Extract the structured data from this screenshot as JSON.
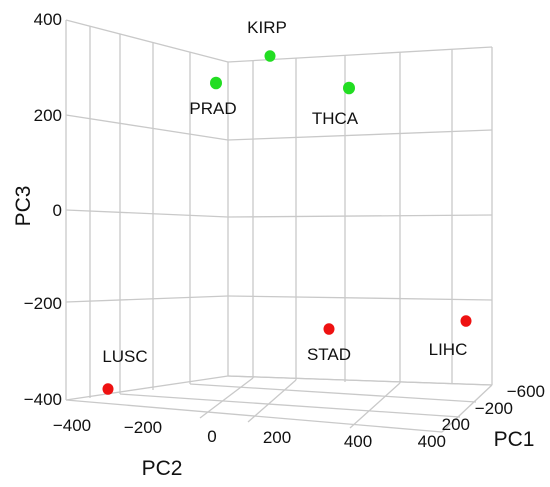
{
  "chart_data": {
    "type": "scatter",
    "projection": "3d",
    "title": "",
    "axes": {
      "x": {
        "label": "PC1",
        "range": [
          -600,
          400
        ],
        "ticks": [
          "−600",
          "−200",
          "200",
          "400"
        ]
      },
      "y": {
        "label": "PC2",
        "range": [
          -400,
          400
        ],
        "ticks": [
          "−400",
          "−200",
          "0",
          "200",
          "400"
        ]
      },
      "z": {
        "label": "PC3",
        "range": [
          -400,
          400
        ],
        "ticks": [
          "400",
          "200",
          "0",
          "−200",
          "−400"
        ]
      }
    },
    "grid": true,
    "colors": {
      "high": "#22dd22",
      "low": "#ee1111",
      "grid": "#c9c9c9"
    },
    "points": [
      {
        "label": "KIRP",
        "pc3": 340,
        "group": "high"
      },
      {
        "label": "PRAD",
        "pc3": 290,
        "group": "high"
      },
      {
        "label": "THCA",
        "pc3": 280,
        "group": "high"
      },
      {
        "label": "LUSC",
        "pc3": -385,
        "group": "low"
      },
      {
        "label": "STAD",
        "pc3": -250,
        "group": "low"
      },
      {
        "label": "LIHC",
        "pc3": -235,
        "group": "low"
      }
    ]
  }
}
